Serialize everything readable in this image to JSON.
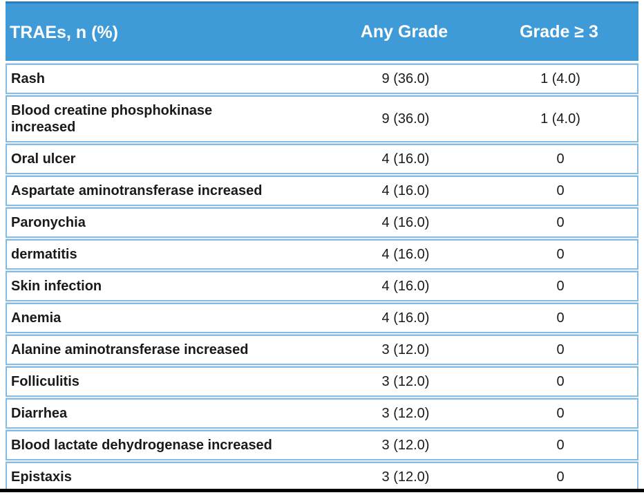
{
  "chart_data": {
    "type": "table",
    "columns": [
      "TRAEs, n (%)",
      "Any Grade",
      "Grade ≥ 3"
    ],
    "rows": [
      [
        "Rash",
        "9 (36.0)",
        "1 (4.0)"
      ],
      [
        "Blood creatine phosphokinase\nincreased",
        "9 (36.0)",
        "1 (4.0)"
      ],
      [
        "Oral ulcer",
        "4 (16.0)",
        "0"
      ],
      [
        "Aspartate aminotransferase increased",
        "4 (16.0)",
        "0"
      ],
      [
        "Paronychia",
        "4 (16.0)",
        "0"
      ],
      [
        "dermatitis",
        "4 (16.0)",
        "0"
      ],
      [
        "Skin infection",
        "4 (16.0)",
        "0"
      ],
      [
        "Anemia",
        "4 (16.0)",
        "0"
      ],
      [
        "Alanine aminotransferase increased",
        "3 (12.0)",
        "0"
      ],
      [
        "Folliculitis",
        "3 (12.0)",
        "0"
      ],
      [
        "Diarrhea",
        "3 (12.0)",
        "0"
      ],
      [
        "Blood lactate dehydrogenase increased",
        "3 (12.0)",
        "0"
      ],
      [
        "Epistaxis",
        "3 (12.0)",
        "0"
      ]
    ],
    "layout": {
      "header_position": "top",
      "grid": "horizontal-row-borders",
      "name_column_align": "left",
      "value_columns_align": "center"
    }
  },
  "colors": {
    "header-bg": "#3F9BD8",
    "header-top-edge": "#2E7CB5",
    "header-text": "#FFFFFF",
    "row-border": "#85BAE3",
    "row-border-light": "#C9E2F4",
    "body-text": "#1A1A1A",
    "bottom-bar": "#000000",
    "background": "#FFFFFF"
  }
}
